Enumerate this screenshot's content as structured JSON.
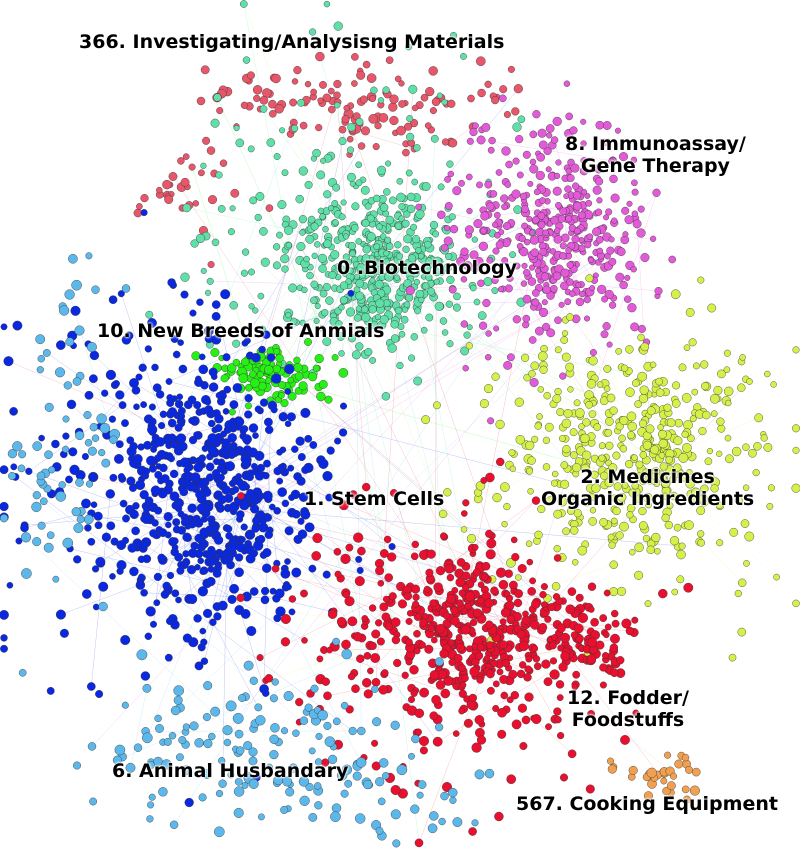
{
  "network": {
    "clusters": [
      {
        "id": "c366",
        "label": "366. Investigating/Analysisng Materials",
        "color": "#e8566a",
        "edge_color": "#f08a98"
      },
      {
        "id": "c0",
        "label": "0 .Biotechnology",
        "color": "#5fe0a8",
        "edge_color": "#8ff0c4"
      },
      {
        "id": "c8",
        "label_line1": "8. Immunoassay/",
        "label_line2": "Gene Therapy",
        "color": "#e35ad8",
        "edge_color": "#ee96e6"
      },
      {
        "id": "c10",
        "label": "10. New Breeds of Anmials",
        "color": "#27f015",
        "edge_color": "#7cf470"
      },
      {
        "id": "c1",
        "label": "1. Stem Cells",
        "color": "#0a28e0",
        "edge_color": "#6f80ee"
      },
      {
        "id": "c2",
        "label_line1": "2. Medicines",
        "label_line2": "Organic Ingredients",
        "color": "#d6f04a",
        "edge_color": "#e8f69a"
      },
      {
        "id": "c12",
        "label_line1": "12. Fodder/",
        "label_line2": "Foodstuffs",
        "color": "#e8102e",
        "edge_color": "#f27a8a"
      },
      {
        "id": "c6",
        "label": "6. Animal Husbandary",
        "color": "#5cb8ea",
        "edge_color": "#9cd6f4"
      },
      {
        "id": "c567",
        "label": "567. Cooking Equipment",
        "color": "#f0a050",
        "edge_color": "#f6c894"
      }
    ]
  }
}
